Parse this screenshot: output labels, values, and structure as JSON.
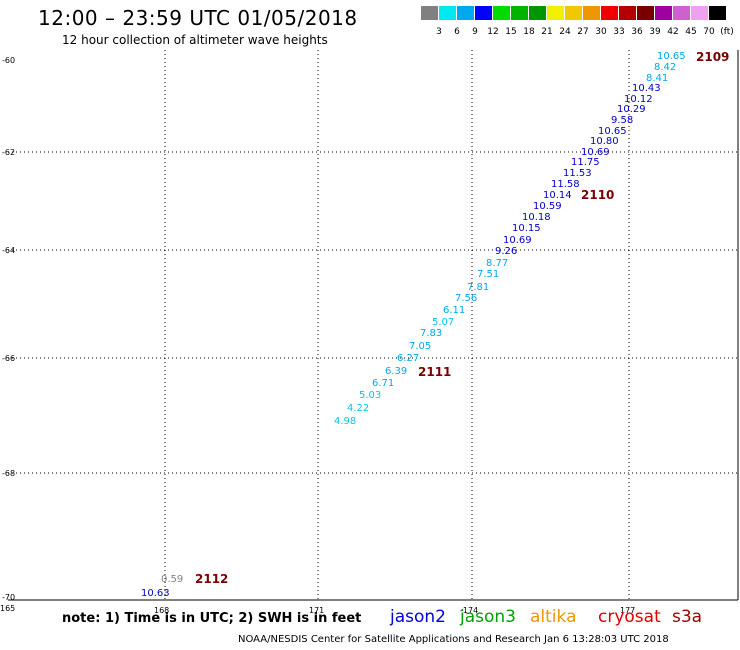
{
  "header": {
    "title": "12:00 – 23:59 UTC 01/05/2018",
    "subtitle": "12 hour collection of altimeter wave heights"
  },
  "legend": {
    "colors": [
      "#808080",
      "#00e8f0",
      "#00a8f0",
      "#0000ff",
      "#00dc00",
      "#00b400",
      "#009600",
      "#f0f000",
      "#f0c800",
      "#f09600",
      "#f00000",
      "#b40000",
      "#7a0000",
      "#a000a0",
      "#d060d0",
      "#f0a0f0",
      "#000000"
    ],
    "labels": [
      "3",
      "6",
      "9",
      "12",
      "15",
      "18",
      "21",
      "24",
      "27",
      "30",
      "33",
      "36",
      "39",
      "42",
      "45",
      "70",
      "(ft)"
    ]
  },
  "axes": {
    "y_labels": [
      "-60",
      "-62",
      "-64",
      "-66",
      "-68",
      "-70"
    ],
    "x_labels": [
      "165",
      "168",
      "171",
      "-174",
      "177"
    ]
  },
  "observations": [
    {
      "text": "10.65",
      "color": "#00a8f0"
    },
    {
      "text": "8.42",
      "color": "#00a8f0"
    },
    {
      "text": "8.41",
      "color": "#00a8f0"
    },
    {
      "text": "10.43",
      "color": "#0000c8"
    },
    {
      "text": "10.12",
      "color": "#0000c8"
    },
    {
      "text": "10.29",
      "color": "#0000c8"
    },
    {
      "text": "9.58",
      "color": "#0000c8"
    },
    {
      "text": "10.65",
      "color": "#0000c8"
    },
    {
      "text": "10.80",
      "color": "#0000c8"
    },
    {
      "text": "10.69",
      "color": "#0000c8"
    },
    {
      "text": "11.75",
      "color": "#0000c8"
    },
    {
      "text": "11.53",
      "color": "#0000c8"
    },
    {
      "text": "11.58",
      "color": "#0000c8"
    },
    {
      "text": "10.14",
      "color": "#0000c8"
    },
    {
      "text": "10.59",
      "color": "#0000c8"
    },
    {
      "text": "10.18",
      "color": "#0000c8"
    },
    {
      "text": "10.15",
      "color": "#0000c8"
    },
    {
      "text": "10.69",
      "color": "#0000c8"
    },
    {
      "text": "9.26",
      "color": "#0000c8"
    },
    {
      "text": "8.77",
      "color": "#00a8f0"
    },
    {
      "text": "7.51",
      "color": "#00a8f0"
    },
    {
      "text": "7.81",
      "color": "#00a8f0"
    },
    {
      "text": "7.56",
      "color": "#00a8f0"
    },
    {
      "text": "6.11",
      "color": "#00a8f0"
    },
    {
      "text": "5.07",
      "color": "#00c8e8"
    },
    {
      "text": "7.83",
      "color": "#00a8f0"
    },
    {
      "text": "7.05",
      "color": "#00a8f0"
    },
    {
      "text": "6.27",
      "color": "#00a8f0"
    },
    {
      "text": "6.39",
      "color": "#00a8f0"
    },
    {
      "text": "6.71",
      "color": "#00a8f0"
    },
    {
      "text": "5.03",
      "color": "#00c8e8"
    },
    {
      "text": "4.22",
      "color": "#00c8e8"
    },
    {
      "text": "4.98",
      "color": "#00c8e8"
    },
    {
      "text": "0.59",
      "color": "#808080"
    },
    {
      "text": "10.63",
      "color": "#0000c8"
    }
  ],
  "passes": [
    "2109",
    "2110",
    "2111",
    "2112"
  ],
  "footer": {
    "note": "note: 1) Time is in UTC; 2) SWH is in feet",
    "satellites": [
      {
        "name": "jason2",
        "color": "#0000e0"
      },
      {
        "name": "jason3",
        "color": "#00a000"
      },
      {
        "name": "altika",
        "color": "#f09600"
      },
      {
        "name": "cryosat",
        "color": "#e00000"
      },
      {
        "name": "s3a",
        "color": "#a00000"
      }
    ],
    "credit": "NOAA/NESDIS Center for Satellite Applications and Research    Jan  6 13:28:03 UTC 2018"
  }
}
